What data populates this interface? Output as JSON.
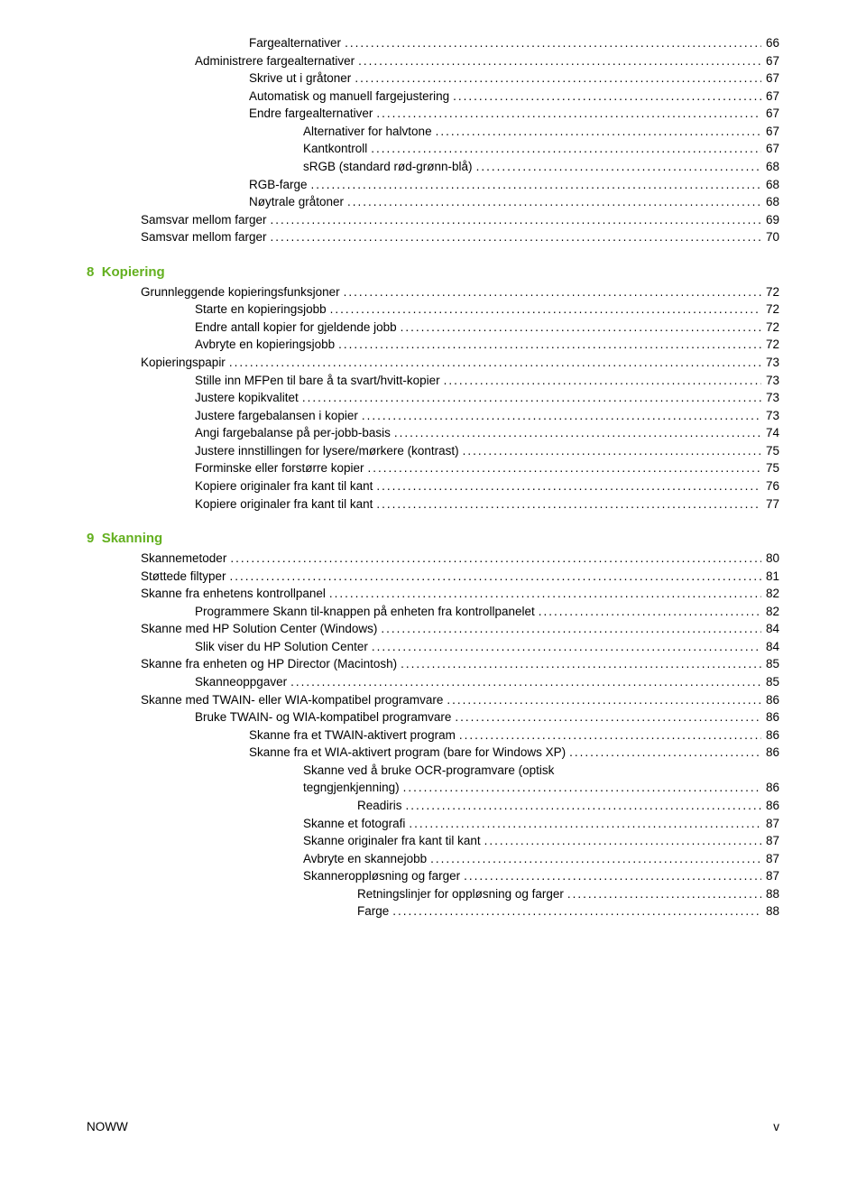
{
  "colors": {
    "heading": "#63b01f",
    "text": "#000000",
    "background": "#ffffff"
  },
  "typography": {
    "body_fontsize_pt": 10,
    "heading_fontsize_pt": 11,
    "font_family": "Arial"
  },
  "block1": [
    {
      "indent": 3,
      "label": "Fargealternativer",
      "page": "66"
    },
    {
      "indent": 2,
      "label": "Administrere fargealternativer",
      "page": "67"
    },
    {
      "indent": 3,
      "label": "Skrive ut i gråtoner",
      "page": "67"
    },
    {
      "indent": 3,
      "label": "Automatisk og manuell fargejustering",
      "page": "67"
    },
    {
      "indent": 3,
      "label": "Endre fargealternativer",
      "page": "67"
    },
    {
      "indent": 4,
      "label": "Alternativer for halvtone",
      "page": "67"
    },
    {
      "indent": 4,
      "label": "Kantkontroll",
      "page": "67"
    },
    {
      "indent": 4,
      "label": "sRGB (standard rød-grønn-blå)",
      "page": "68"
    },
    {
      "indent": 3,
      "label": "RGB-farge",
      "page": "68"
    },
    {
      "indent": 3,
      "label": "Nøytrale gråtoner",
      "page": "68"
    },
    {
      "indent": 1,
      "label": "Samsvar mellom farger",
      "page": "69"
    }
  ],
  "block1_last": {
    "indent": 1,
    "label_prefix": "Samsvar mellom farger",
    "page": "70"
  },
  "chapter8": {
    "num": "8",
    "title": "Kopiering"
  },
  "block2": [
    {
      "indent": 1,
      "label": "Grunnleggende kopieringsfunksjoner",
      "page": "72"
    },
    {
      "indent": 2,
      "label": "Starte en kopieringsjobb",
      "page": "72"
    },
    {
      "indent": 2,
      "label": "Endre antall kopier for gjeldende jobb",
      "page": "72"
    },
    {
      "indent": 2,
      "label": "Avbryte en kopieringsjobb",
      "page": "72"
    },
    {
      "indent": 1,
      "label": "Kopieringspapir",
      "page": "73"
    },
    {
      "indent": 2,
      "label": "Stille inn MFPen til bare å ta svart/hvitt-kopier",
      "page": "73"
    },
    {
      "indent": 2,
      "label": "Justere kopikvalitet",
      "page": "73"
    },
    {
      "indent": 2,
      "label": "Justere fargebalansen i kopier",
      "page": "73"
    },
    {
      "indent": 2,
      "label": "Angi fargebalanse på per-jobb-basis",
      "page": "74"
    },
    {
      "indent": 2,
      "label": "Justere innstillingen for lysere/mørkere (kontrast)",
      "page": "75"
    },
    {
      "indent": 2,
      "label": "Forminske eller forstørre kopier",
      "page": "75"
    },
    {
      "indent": 2,
      "label": "Kopiere originaler fra kant til kant",
      "page": "76"
    }
  ],
  "block2_last_page": "77",
  "chapter9": {
    "num": "9",
    "title": "Skanning"
  },
  "block3": [
    {
      "indent": 1,
      "label": "Skannemetoder",
      "page": "80"
    },
    {
      "indent": 1,
      "label": "Støttede filtyper",
      "page": "81"
    },
    {
      "indent": 1,
      "label": "Skanne fra enhetens kontrollpanel",
      "page": "82"
    },
    {
      "indent": 2,
      "label": "Programmere Skann til-knappen på enheten fra kontrollpanelet",
      "page": "82"
    },
    {
      "indent": 1,
      "label": "Skanne med HP Solution Center (Windows)",
      "page": "84"
    },
    {
      "indent": 2,
      "label": "Slik viser du HP Solution Center",
      "page": "84"
    },
    {
      "indent": 1,
      "label": "Skanne fra enheten og HP Director (Macintosh)",
      "page": "85"
    },
    {
      "indent": 2,
      "label": "Skanneoppgaver",
      "page": "85"
    },
    {
      "indent": 1,
      "label": "Skanne med TWAIN- eller WIA-kompatibel programvare",
      "page": "86"
    },
    {
      "indent": 2,
      "label": "Bruke TWAIN- og WIA-kompatibel programvare",
      "page": "86"
    },
    {
      "indent": 3,
      "label": "Skanne fra et TWAIN-aktivert program",
      "page": "86"
    },
    {
      "indent": 3,
      "label": "Skanne fra et WIA-aktivert program (bare for Windows XP)",
      "page": "86"
    }
  ],
  "ocr_line1": "Skanne ved å bruke OCR-programvare (optisk",
  "ocr_line2_label": "tegngjenkjenning)",
  "ocr_page": "86",
  "block4": [
    {
      "indent": 5,
      "label": "Readiris",
      "page": "86"
    },
    {
      "indent": 4,
      "label": "Skanne et fotografi",
      "page": "87"
    },
    {
      "indent": 4,
      "label": "Skanne originaler fra kant til kant",
      "page": "87"
    },
    {
      "indent": 4,
      "label": "Avbryte en skannejobb",
      "page": "87"
    },
    {
      "indent": 4,
      "label": "Skanneroppløsning og farger",
      "page": "87"
    },
    {
      "indent": 5,
      "label": "Retningslinjer for oppløsning og farger",
      "page": "88"
    },
    {
      "indent": 5,
      "label": "Farge",
      "page": "88"
    }
  ],
  "footer": {
    "left": "NOWW",
    "right": "v"
  }
}
